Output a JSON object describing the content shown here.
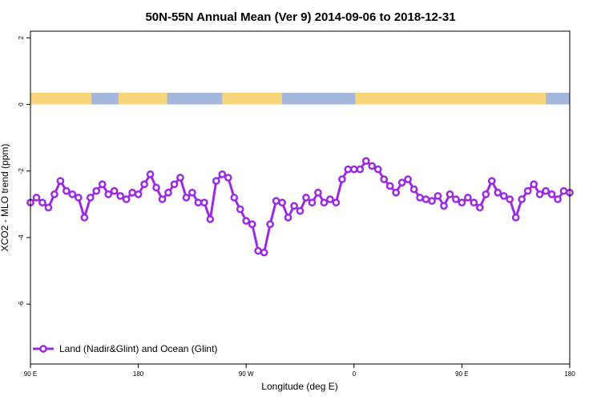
{
  "chart_data": {
    "type": "line",
    "title": "50N-55N Annual Mean (Ver 9)   2014-09-06 to 2018-12-31",
    "xlabel": "Longitude (deg E)",
    "ylabel": "XCO2 - MLO trend (ppm)",
    "xlim": [
      0,
      90
    ],
    "ylim": [
      -7.8,
      2.2
    ],
    "x_ticks": [
      {
        "value": 0,
        "label": "90 E"
      },
      {
        "value": 18,
        "label": "180"
      },
      {
        "value": 36,
        "label": "90 W"
      },
      {
        "value": 54,
        "label": "0"
      },
      {
        "value": 72,
        "label": "90 E"
      },
      {
        "value": 90,
        "label": "180"
      }
    ],
    "y_ticks": [
      {
        "value": 2,
        "label": "2"
      },
      {
        "value": 0,
        "label": "0"
      },
      {
        "value": -2,
        "label": "-2"
      },
      {
        "value": -4,
        "label": "-4"
      },
      {
        "value": -6,
        "label": "-6"
      }
    ],
    "land_ocean_strip": {
      "ocean_color": "#a3b8db",
      "land_color": "#f7d57a",
      "y_range": [
        0,
        0.35
      ],
      "land_segments": [
        [
          0,
          10.2
        ],
        [
          14.7,
          22.8
        ],
        [
          32.0,
          42.0
        ],
        [
          54.2,
          86.0
        ]
      ]
    },
    "series": [
      {
        "name": "Land (Nadir&Glint) and Ocean (Glint)",
        "color": "#9b2be2",
        "x": [
          0,
          1,
          2,
          3,
          4,
          5,
          6,
          7,
          8,
          9,
          10,
          11,
          12,
          13,
          14,
          15,
          16,
          17,
          18,
          19,
          20,
          21,
          22,
          23,
          24,
          25,
          26,
          27,
          28,
          29,
          30,
          31,
          32,
          33,
          34,
          35,
          36,
          37,
          38,
          39,
          40,
          41,
          42,
          43,
          44,
          45,
          46,
          47,
          48,
          49,
          50,
          51,
          52,
          53,
          54,
          55,
          56,
          57,
          58,
          59,
          60,
          61,
          62,
          63,
          64,
          65,
          66,
          67,
          68,
          69,
          70,
          71,
          72,
          73,
          74,
          75,
          76,
          77,
          78,
          79,
          80,
          81,
          82,
          83,
          84,
          85,
          86,
          87,
          88,
          89,
          90
        ],
        "values": [
          -2.95,
          -2.8,
          -2.95,
          -3.1,
          -2.7,
          -2.3,
          -2.6,
          -2.7,
          -2.8,
          -3.4,
          -2.8,
          -2.6,
          -2.4,
          -2.7,
          -2.6,
          -2.75,
          -2.85,
          -2.65,
          -2.7,
          -2.4,
          -2.1,
          -2.5,
          -2.85,
          -2.65,
          -2.4,
          -2.2,
          -2.8,
          -2.65,
          -2.95,
          -2.95,
          -3.45,
          -2.3,
          -2.1,
          -2.2,
          -2.8,
          -3.15,
          -3.5,
          -3.6,
          -4.4,
          -4.45,
          -3.6,
          -2.9,
          -2.95,
          -3.4,
          -3.05,
          -3.2,
          -2.8,
          -2.95,
          -2.65,
          -2.95,
          -2.85,
          -2.95,
          -2.25,
          -1.95,
          -1.95,
          -1.95,
          -1.7,
          -1.85,
          -1.95,
          -2.25,
          -2.45,
          -2.65,
          -2.35,
          -2.25,
          -2.55,
          -2.8,
          -2.85,
          -2.9,
          -2.75,
          -3.05,
          -2.7,
          -2.85,
          -2.95,
          -2.8,
          -2.95,
          -3.1,
          -2.7,
          -2.3,
          -2.65,
          -2.75,
          -2.85,
          -3.4,
          -2.85,
          -2.6,
          -2.4,
          -2.7,
          -2.6,
          -2.7,
          -2.85,
          -2.6,
          -2.65
        ]
      }
    ],
    "legend": {
      "position": "bottom-left",
      "entries": [
        "Land (Nadir&Glint) and Ocean (Glint)"
      ]
    }
  }
}
